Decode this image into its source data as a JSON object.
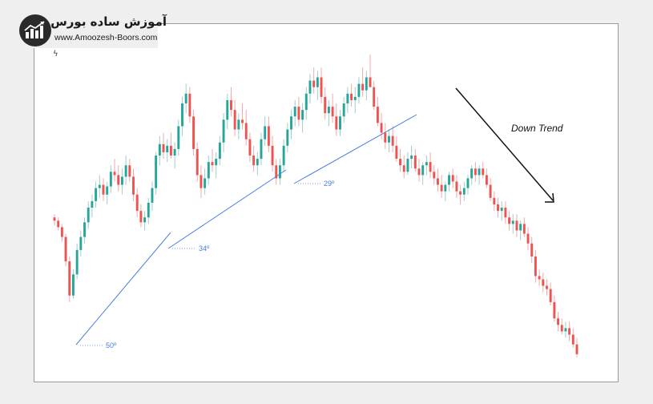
{
  "branding": {
    "title": "آموزش ساده بورس",
    "url": "www.Amoozesh-Boors.com"
  },
  "corner_mark": "ϟ",
  "colors": {
    "up": "#26a69a",
    "down": "#ef5350",
    "wick_up": "#9ccfca",
    "wick_down": "#f3a9a7",
    "trendline": "#4a7fe0",
    "arrow": "#111111"
  },
  "chart_data": {
    "type": "candlestick",
    "annotations": {
      "down_trend_label": "Down Trend",
      "angles": [
        "50º",
        "34º",
        "29º"
      ]
    },
    "ohlc": [
      [
        60,
        62,
        55,
        58
      ],
      [
        58,
        60,
        52,
        54
      ],
      [
        54,
        56,
        45,
        48
      ],
      [
        48,
        50,
        30,
        33
      ],
      [
        33,
        36,
        8,
        12
      ],
      [
        12,
        28,
        10,
        25
      ],
      [
        25,
        44,
        22,
        40
      ],
      [
        40,
        52,
        36,
        48
      ],
      [
        48,
        60,
        44,
        57
      ],
      [
        57,
        70,
        53,
        66
      ],
      [
        66,
        74,
        60,
        70
      ],
      [
        70,
        82,
        66,
        78
      ],
      [
        78,
        86,
        72,
        80
      ],
      [
        80,
        84,
        70,
        74
      ],
      [
        74,
        82,
        68,
        79
      ],
      [
        79,
        92,
        75,
        88
      ],
      [
        88,
        96,
        82,
        86
      ],
      [
        86,
        92,
        76,
        80
      ],
      [
        80,
        90,
        74,
        85
      ],
      [
        85,
        98,
        80,
        92
      ],
      [
        92,
        96,
        82,
        85
      ],
      [
        85,
        90,
        70,
        74
      ],
      [
        74,
        78,
        60,
        64
      ],
      [
        64,
        68,
        54,
        57
      ],
      [
        57,
        64,
        52,
        60
      ],
      [
        60,
        72,
        56,
        69
      ],
      [
        69,
        82,
        64,
        78
      ],
      [
        78,
        100,
        74,
        98
      ],
      [
        98,
        110,
        92,
        105
      ],
      [
        105,
        112,
        96,
        100
      ],
      [
        100,
        108,
        94,
        104
      ],
      [
        104,
        112,
        96,
        98
      ],
      [
        98,
        106,
        90,
        102
      ],
      [
        102,
        120,
        98,
        116
      ],
      [
        116,
        134,
        110,
        130
      ],
      [
        130,
        142,
        124,
        136
      ],
      [
        136,
        140,
        118,
        122
      ],
      [
        122,
        126,
        98,
        102
      ],
      [
        102,
        106,
        82,
        86
      ],
      [
        86,
        92,
        72,
        78
      ],
      [
        78,
        90,
        74,
        84
      ],
      [
        84,
        98,
        80,
        94
      ],
      [
        94,
        102,
        88,
        92
      ],
      [
        92,
        100,
        84,
        96
      ],
      [
        96,
        110,
        92,
        106
      ],
      [
        106,
        124,
        100,
        120
      ],
      [
        120,
        136,
        114,
        132
      ],
      [
        132,
        140,
        122,
        126
      ],
      [
        126,
        132,
        110,
        114
      ],
      [
        114,
        124,
        108,
        120
      ],
      [
        120,
        130,
        114,
        118
      ],
      [
        118,
        126,
        104,
        108
      ],
      [
        108,
        112,
        94,
        98
      ],
      [
        98,
        104,
        88,
        92
      ],
      [
        92,
        100,
        86,
        96
      ],
      [
        96,
        112,
        92,
        108
      ],
      [
        108,
        122,
        104,
        116
      ],
      [
        116,
        122,
        100,
        104
      ],
      [
        104,
        110,
        88,
        92
      ],
      [
        92,
        96,
        80,
        84
      ],
      [
        84,
        96,
        80,
        92
      ],
      [
        92,
        108,
        88,
        104
      ],
      [
        104,
        118,
        100,
        114
      ],
      [
        114,
        126,
        108,
        122
      ],
      [
        122,
        132,
        116,
        128
      ],
      [
        128,
        134,
        116,
        120
      ],
      [
        120,
        130,
        112,
        126
      ],
      [
        126,
        140,
        120,
        136
      ],
      [
        136,
        148,
        130,
        144
      ],
      [
        144,
        152,
        136,
        140
      ],
      [
        140,
        150,
        132,
        146
      ],
      [
        146,
        152,
        130,
        134
      ],
      [
        134,
        140,
        120,
        124
      ],
      [
        124,
        132,
        116,
        128
      ],
      [
        128,
        136,
        118,
        122
      ],
      [
        122,
        130,
        110,
        114
      ],
      [
        114,
        126,
        110,
        122
      ],
      [
        122,
        134,
        118,
        130
      ],
      [
        130,
        140,
        124,
        136
      ],
      [
        136,
        142,
        128,
        132
      ],
      [
        132,
        140,
        124,
        134
      ],
      [
        134,
        146,
        130,
        142
      ],
      [
        142,
        152,
        134,
        138
      ],
      [
        138,
        150,
        132,
        146
      ],
      [
        146,
        160,
        140,
        140
      ],
      [
        140,
        144,
        126,
        128
      ],
      [
        128,
        134,
        116,
        118
      ],
      [
        118,
        124,
        108,
        112
      ],
      [
        112,
        118,
        102,
        106
      ],
      [
        106,
        114,
        100,
        110
      ],
      [
        110,
        116,
        100,
        104
      ],
      [
        104,
        110,
        94,
        96
      ],
      [
        96,
        102,
        88,
        92
      ],
      [
        92,
        98,
        84,
        88
      ],
      [
        88,
        100,
        86,
        96
      ],
      [
        96,
        104,
        90,
        98
      ],
      [
        98,
        102,
        88,
        90
      ],
      [
        90,
        96,
        82,
        86
      ],
      [
        86,
        94,
        80,
        92
      ],
      [
        92,
        98,
        86,
        94
      ],
      [
        94,
        100,
        84,
        88
      ],
      [
        88,
        92,
        80,
        84
      ],
      [
        84,
        90,
        76,
        80
      ],
      [
        80,
        86,
        72,
        76
      ],
      [
        76,
        82,
        70,
        80
      ],
      [
        80,
        88,
        76,
        86
      ],
      [
        86,
        90,
        78,
        82
      ],
      [
        82,
        86,
        72,
        76
      ],
      [
        76,
        80,
        68,
        74
      ],
      [
        74,
        82,
        70,
        78
      ],
      [
        78,
        86,
        74,
        84
      ],
      [
        84,
        92,
        80,
        90
      ],
      [
        90,
        94,
        82,
        86
      ],
      [
        86,
        92,
        80,
        90
      ],
      [
        90,
        94,
        84,
        86
      ],
      [
        86,
        90,
        78,
        80
      ],
      [
        80,
        84,
        70,
        72
      ],
      [
        72,
        76,
        64,
        68
      ],
      [
        68,
        72,
        60,
        64
      ],
      [
        64,
        70,
        58,
        66
      ],
      [
        66,
        70,
        56,
        60
      ],
      [
        60,
        64,
        52,
        56
      ],
      [
        56,
        62,
        50,
        58
      ],
      [
        58,
        62,
        48,
        52
      ],
      [
        52,
        58,
        46,
        56
      ],
      [
        56,
        60,
        48,
        50
      ],
      [
        50,
        54,
        40,
        44
      ],
      [
        44,
        48,
        32,
        36
      ],
      [
        36,
        40,
        20,
        24
      ],
      [
        24,
        28,
        18,
        22
      ],
      [
        22,
        26,
        14,
        18
      ],
      [
        18,
        22,
        12,
        16
      ],
      [
        16,
        20,
        6,
        8
      ],
      [
        8,
        12,
        -4,
        -2
      ],
      [
        -2,
        2,
        -10,
        -6
      ],
      [
        -6,
        -2,
        -12,
        -10
      ],
      [
        -10,
        -4,
        -14,
        -8
      ],
      [
        -8,
        -4,
        -16,
        -12
      ],
      [
        -12,
        -8,
        -20,
        -18
      ],
      [
        -18,
        -14,
        -26,
        -24
      ]
    ],
    "ylim": [
      -28,
      162
    ]
  }
}
